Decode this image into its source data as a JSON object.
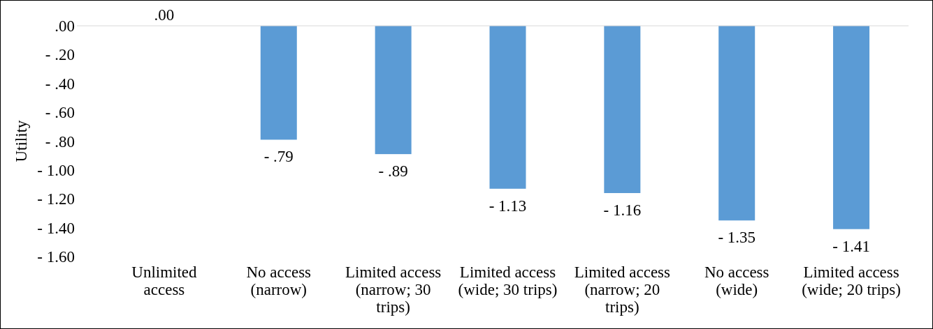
{
  "chart_data": {
    "type": "bar",
    "ylabel": "Utility",
    "categories": [
      "Unlimited access",
      "No access (narrow)",
      "Limited access (narrow; 30 trips)",
      "Limited access (wide; 30 trips)",
      "Limited access (narrow; 20 trips)",
      "No access (wide)",
      "Limited access (wide; 20 trips)"
    ],
    "values": [
      0,
      -0.79,
      -0.89,
      -1.13,
      -1.16,
      -1.35,
      -1.41
    ],
    "value_labels": [
      ".00",
      "- .79",
      "- .89",
      "- 1.13",
      "- 1.16",
      "- 1.35",
      "- 1.41"
    ],
    "color": "#5b9bd5",
    "ylim": [
      -1.6,
      0
    ],
    "yticks": [
      {
        "value": 0,
        "label": ".00"
      },
      {
        "value": -0.2,
        "label": "- .20"
      },
      {
        "value": -0.4,
        "label": "- .40"
      },
      {
        "value": -0.6,
        "label": "- .60"
      },
      {
        "value": -0.8,
        "label": "- .80"
      },
      {
        "value": -1,
        "label": "- 1.00"
      },
      {
        "value": -1.2,
        "label": "- 1.20"
      },
      {
        "value": -1.4,
        "label": "- 1.40"
      },
      {
        "value": -1.6,
        "label": "- 1.60"
      }
    ]
  }
}
